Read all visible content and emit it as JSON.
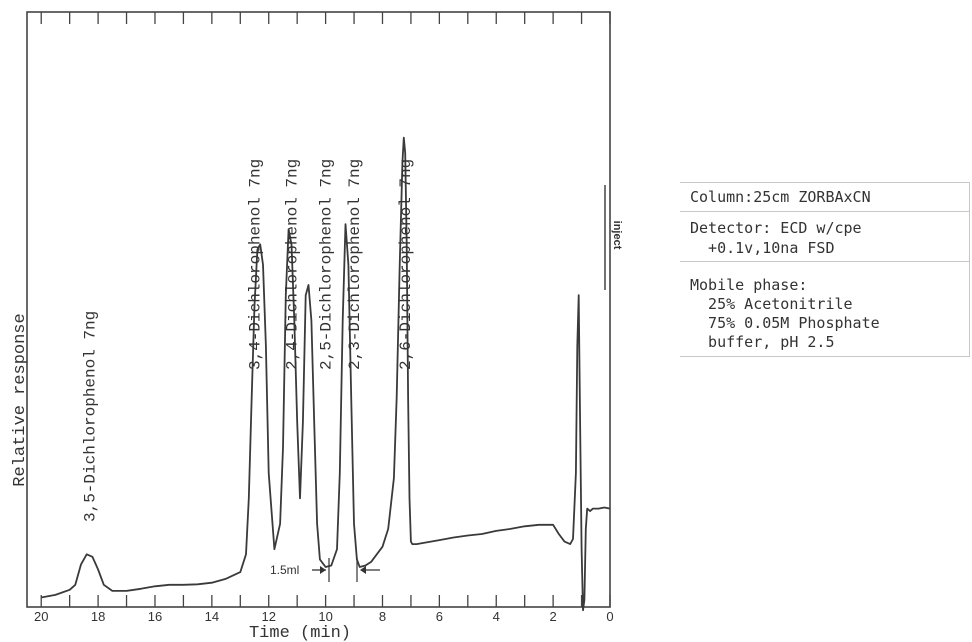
{
  "chart_data": {
    "type": "line",
    "xlabel": "Time (min)",
    "ylabel": "Relative response",
    "x_reversed": true,
    "xlim": [
      20.5,
      0
    ],
    "ylim": [
      0,
      100
    ],
    "grid": false,
    "xticks": [
      20,
      18,
      16,
      14,
      12,
      10,
      8,
      6,
      4,
      2,
      0
    ],
    "series": [
      {
        "x": [
          20.0,
          19.5,
          19.0,
          18.8,
          18.6,
          18.4,
          18.2,
          18.0,
          17.8,
          17.5,
          17.0,
          16.5,
          16.0,
          15.5,
          15.0,
          14.5,
          14.0,
          13.5,
          13.0,
          12.8,
          12.7,
          12.6,
          12.5,
          12.4,
          12.3,
          12.2,
          12.1,
          12.0,
          11.8,
          11.6,
          11.5,
          11.4,
          11.3,
          11.2,
          11.1,
          11.0,
          10.9,
          10.8,
          10.7,
          10.6,
          10.5,
          10.4,
          10.3,
          10.2,
          10.0,
          9.8,
          9.6,
          9.5,
          9.4,
          9.3,
          9.2,
          9.1,
          9.0,
          8.9,
          8.8,
          8.6,
          8.4,
          8.2,
          8.0,
          7.8,
          7.6,
          7.5,
          7.4,
          7.3,
          7.25,
          7.2,
          7.15,
          7.1,
          7.05,
          7.0,
          6.95,
          6.9,
          6.8,
          6.5,
          6.0,
          5.5,
          5.0,
          4.5,
          4.0,
          3.5,
          3.0,
          2.5,
          2.0,
          1.8,
          1.6,
          1.4,
          1.3,
          1.2,
          1.15,
          1.1,
          1.05,
          1.0,
          0.95,
          0.9,
          0.85,
          0.8,
          0.7,
          0.6,
          0.4,
          0.2,
          0.0
        ],
        "y": [
          0.5,
          1.0,
          2.0,
          3.0,
          7.0,
          9.0,
          8.5,
          6.0,
          3.0,
          1.8,
          1.8,
          2.2,
          2.7,
          3.0,
          3.0,
          3.1,
          3.4,
          4.2,
          5.5,
          9.0,
          20.0,
          40.0,
          58.0,
          69.0,
          70.0,
          66.0,
          50.0,
          25.0,
          10.0,
          15.0,
          30.0,
          60.0,
          73.0,
          70.0,
          55.0,
          35.0,
          20.0,
          35.0,
          60.0,
          62.0,
          55.0,
          35.0,
          15.0,
          8.0,
          6.5,
          6.8,
          10.0,
          25.0,
          55.0,
          74.0,
          66.0,
          40.0,
          15.0,
          8.0,
          6.5,
          6.8,
          7.5,
          9.0,
          10.5,
          14.0,
          24.0,
          40.0,
          65.0,
          86.0,
          91.0,
          88.0,
          70.0,
          40.0,
          20.0,
          11.5,
          11.0,
          11.0,
          11.0,
          11.3,
          11.8,
          12.3,
          12.7,
          13.0,
          13.6,
          14.0,
          14.5,
          14.8,
          14.8,
          13.0,
          11.5,
          11.0,
          12.0,
          25.0,
          50.0,
          60.0,
          35.0,
          10.0,
          -2.0,
          0.0,
          14.0,
          18.0,
          17.5,
          18.0,
          18.0,
          18.2,
          18.0
        ]
      }
    ],
    "peak_labels": [
      {
        "text": "3,5-Dichlorophenol 7ng",
        "x": 18.3
      },
      {
        "text": "3,4-Dichlorophenol 7ng",
        "x": 12.5
      },
      {
        "text": "2,4-Dichlorophenol 7ng",
        "x": 11.2
      },
      {
        "text": "2,5-Dichlorophenol 7ng",
        "x": 10.0
      },
      {
        "text": "2,3-Dichlorophenol 7ng",
        "x": 9.0
      },
      {
        "text": "2,6-Dichlorophenol 7ng",
        "x": 7.2
      }
    ],
    "annotations": [
      {
        "text": "inject",
        "x": 0.7
      },
      {
        "text": "1.5ml",
        "x": 9.1
      }
    ]
  },
  "panel": {
    "column": "Column:25cm ZORBAxCN",
    "detector_1": "Detector: ECD w/cpe",
    "detector_2": "  +0.1v,10na FSD",
    "mobile_1": "Mobile phase:",
    "mobile_2": "  25% Acetonitrile",
    "mobile_3": "  75% 0.05M Phosphate",
    "mobile_4": "  buffer, pH 2.5"
  }
}
